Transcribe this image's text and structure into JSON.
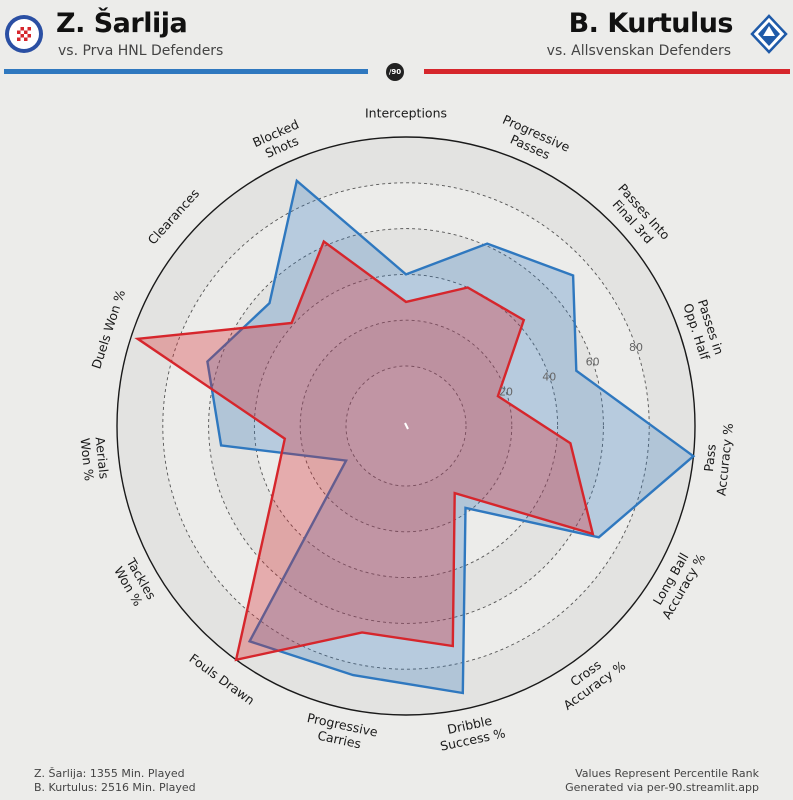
{
  "header": {
    "badge": "/90",
    "left": {
      "name": "Z. Šarlija",
      "subtitle": "vs. Prva HNL Defenders",
      "color": "#2f78bf",
      "logo_text": "HAJDUK SPLIT"
    },
    "right": {
      "name": "B. Kurtulus",
      "subtitle": "vs. Allsvenskan Defenders",
      "color": "#d6262c",
      "logo_text": "HALMSTADS BK"
    }
  },
  "footer": {
    "left_line1": "Z. Šarlija: 1355 Min. Played",
    "left_line2": "B. Kurtulus: 2516 Min. Played",
    "right_line1": "Values Represent Percentile Rank",
    "right_line2": "Generated via per-90.streamlit.app"
  },
  "chart_data": {
    "type": "radar",
    "axes": [
      "Interceptions",
      "Progressive Passes",
      "Passes Into Final 3rd",
      "Passes in Opp. Half",
      "Pass Accuracy %",
      "Long Ball Accuracy %",
      "Cross Accuracy %",
      "Dribble Success %",
      "Progressive Carries",
      "Fouls Drawn",
      "Tackles Won %",
      "Aerials Won %",
      "Duels Won %",
      "Clearances",
      "Blocked Shots"
    ],
    "axis_label_lines": [
      [
        "Interceptions"
      ],
      [
        "Progressive",
        "Passes"
      ],
      [
        "Passes Into",
        "Final 3rd"
      ],
      [
        "Passes in",
        "Opp. Half"
      ],
      [
        "Pass",
        "Accuracy %"
      ],
      [
        "Long Ball",
        "Accuracy %"
      ],
      [
        "Cross",
        "Accuracy %"
      ],
      [
        "Dribble",
        "Success %"
      ],
      [
        "Progressive",
        "Carries"
      ],
      [
        "Fouls Drawn"
      ],
      [
        "Tackles",
        "Won %"
      ],
      [
        "Aerials",
        "Won %"
      ],
      [
        "Duels Won %"
      ],
      [
        "Clearances"
      ],
      [
        "Blocked",
        "Shots"
      ]
    ],
    "ring_ticks": [
      20,
      40,
      60,
      80
    ],
    "range": [
      0,
      100
    ],
    "series": [
      {
        "name": "Z. Šarlija",
        "color": "#2f78bf",
        "values": [
          40,
          61,
          72,
          52,
          100,
          71,
          18,
          93,
          85,
          90,
          4,
          55,
          65,
          54,
          91
        ]
      },
      {
        "name": "B. Kurtulus",
        "color": "#d6262c",
        "values": [
          28,
          40,
          43,
          16,
          46,
          68,
          10,
          72,
          66,
          100,
          42,
          27,
          97,
          41,
          62
        ]
      }
    ]
  }
}
